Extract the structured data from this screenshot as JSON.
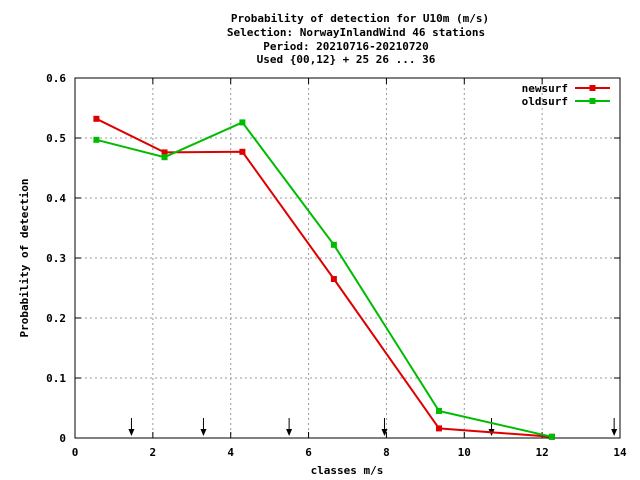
{
  "chart_data": {
    "type": "line",
    "title_lines": [
      "Probability of detection  for U10m (m/s)",
      "Selection: NorwayInlandWind     46 stations",
      "Period: 20210716-20210720",
      "Used {00,12} + 25 26 ... 36"
    ],
    "xlabel": "classes m/s",
    "ylabel": "Probability of detection",
    "xlim": [
      0,
      14
    ],
    "ylim": [
      0,
      0.6
    ],
    "x_ticks": [
      0,
      2,
      4,
      6,
      8,
      10,
      12,
      14
    ],
    "x_tick_labels": [
      "0",
      "2",
      "4",
      "6",
      "8",
      "10",
      "12",
      "14"
    ],
    "y_ticks": [
      0,
      0.1,
      0.2,
      0.3,
      0.4,
      0.5,
      0.6
    ],
    "y_tick_labels": [
      "0",
      "0.1",
      "0.2",
      "0.3",
      "0.4",
      "0.5",
      "0.6"
    ],
    "grid": true,
    "legend_position": "top-right",
    "class_boundary_arrows": [
      1.45,
      3.3,
      5.5,
      7.95,
      10.7,
      13.85
    ],
    "series": [
      {
        "name": "newsurf",
        "color": "#dd0000",
        "x": [
          0.55,
          2.3,
          4.3,
          6.65,
          9.35,
          12.25
        ],
        "y": [
          0.532,
          0.476,
          0.477,
          0.265,
          0.016,
          0.002
        ]
      },
      {
        "name": "oldsurf",
        "color": "#00bb00",
        "x": [
          0.55,
          2.3,
          4.3,
          6.65,
          9.35,
          12.25
        ],
        "y": [
          0.497,
          0.468,
          0.526,
          0.322,
          0.045,
          0.002
        ]
      }
    ]
  }
}
